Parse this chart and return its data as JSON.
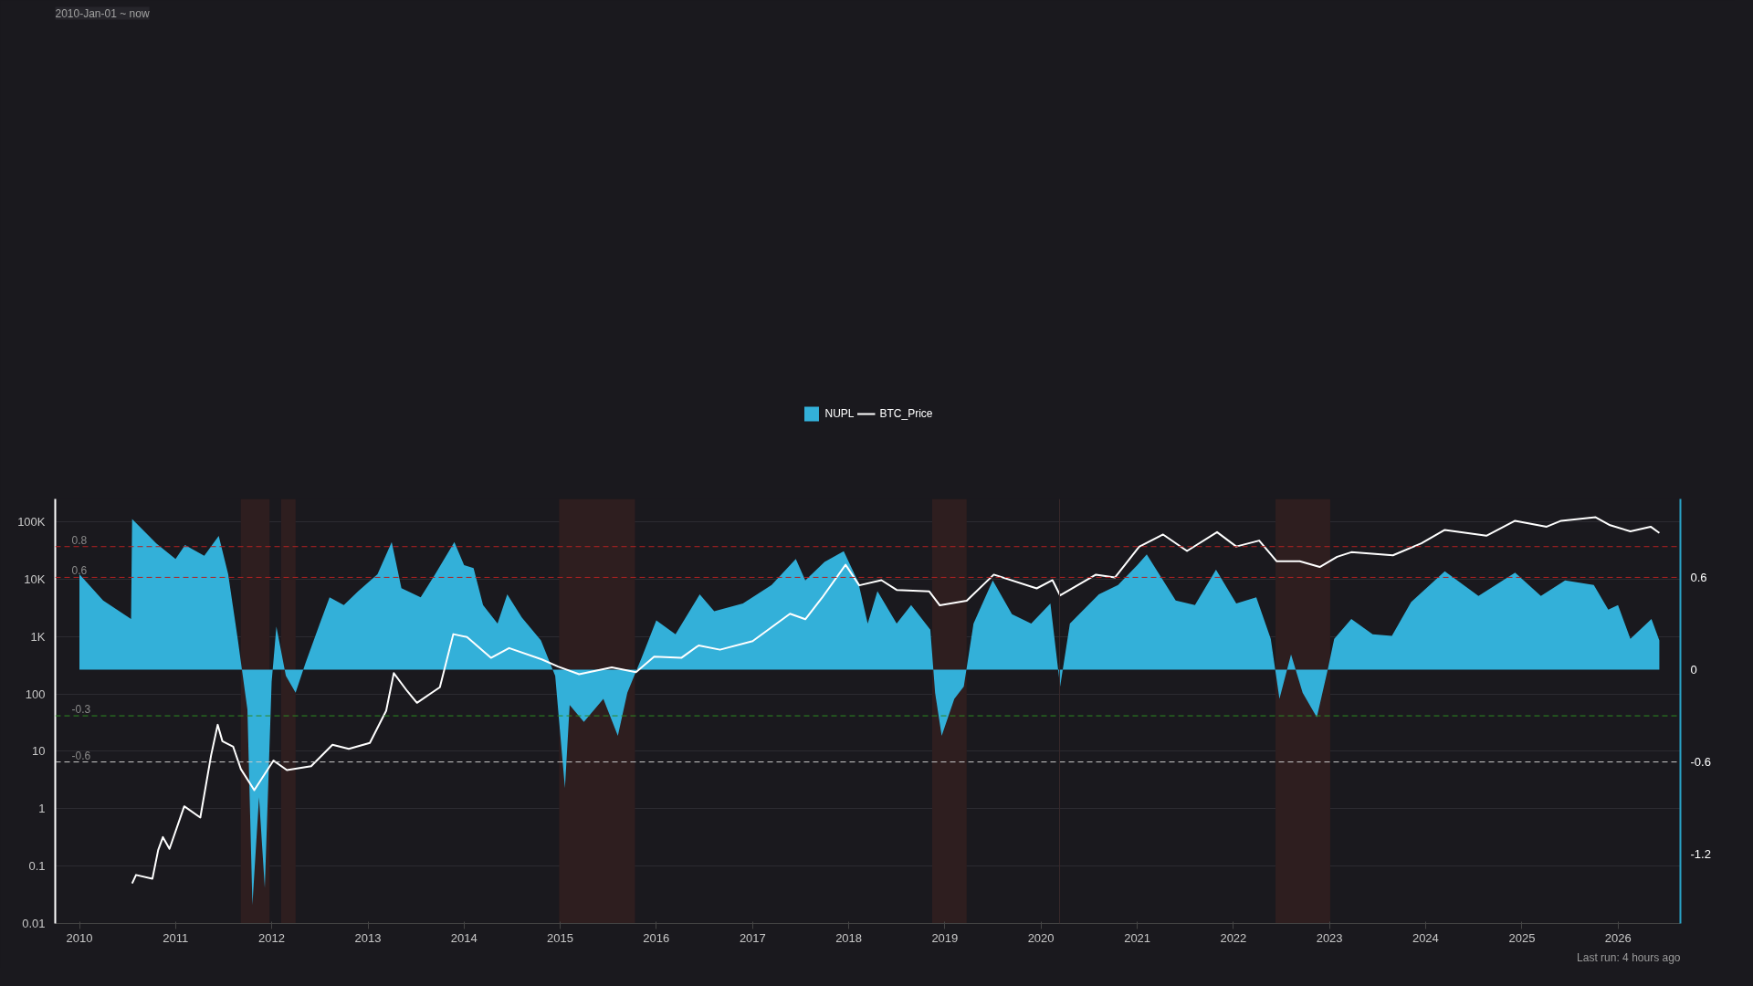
{
  "chart_data": {
    "type": "area",
    "annotations": [
      "2010-Jan-01 ~ now",
      "Last run: 4 hours ago"
    ],
    "xlim": [
      "2009-10-01",
      "2026-08-26"
    ],
    "xticks": [
      "2010",
      "2011",
      "2012",
      "2013",
      "2014",
      "2015",
      "2016",
      "2017",
      "2018",
      "2019",
      "2020",
      "2021",
      "2022",
      "2023",
      "2024",
      "2025",
      "2026"
    ],
    "log": "y",
    "ylim": [
      0.01,
      250000
    ],
    "yticks": [
      0.01,
      0.1,
      1,
      10,
      100,
      {
        "value": 1000,
        "label": "1K"
      },
      {
        "value": 10000,
        "label": "10K"
      },
      {
        "value": 100000,
        "label": "100K"
      }
    ],
    "y2lim": [
      -1.65,
      1.11
    ],
    "y2ticks": [
      -1.2,
      -0.6,
      0,
      0.6
    ],
    "grid": "y",
    "legend": "top",
    "ref_lines": [
      {
        "axis": "y2",
        "value": 0.8,
        "label": "0.8",
        "color": "#b22222",
        "line_style": "dashed"
      },
      {
        "axis": "y2",
        "value": 0.6,
        "label": "0.6",
        "color": "#b22222",
        "line_style": "dashed"
      },
      {
        "axis": "y2",
        "value": -0.3,
        "label": "-0.3",
        "color": "#2e8b22",
        "line_style": "dashed"
      },
      {
        "axis": "y2",
        "value": -0.6,
        "label": "-0.6",
        "color": "#cccccc",
        "line_style": "dashed"
      },
      {
        "axis": "x",
        "value": "2020-03-12",
        "color": "#3a2a2c",
        "line_style": "solid"
      }
    ],
    "bands": [
      {
        "axis": "x",
        "from": "2011-09-06",
        "to": "2011-12-24",
        "color": "#2e1e1f"
      },
      {
        "axis": "x",
        "from": "2012-02-06",
        "to": "2012-04-01",
        "color": "#2e1e1f"
      },
      {
        "axis": "x",
        "from": "2014-12-28",
        "to": "2015-10-12",
        "color": "#2e1e1f"
      },
      {
        "axis": "x",
        "from": "2018-11-14",
        "to": "2019-03-25",
        "color": "#2e1e1f"
      },
      {
        "axis": "x",
        "from": "2022-06-10",
        "to": "2023-01-04",
        "color": "#2e1e1f"
      }
    ],
    "series": [
      {
        "name": "NUPL",
        "axis": "y2",
        "color": "#33b0d9",
        "x": [
          "2010-01-01",
          "2010-04-01",
          "2010-07-16",
          "2010-07-20",
          "2010-10-20",
          "2011-01-01",
          "2011-02-06",
          "2011-04-20",
          "2011-06-14",
          "2011-07-20",
          "2011-08-26",
          "2011-10-01",
          "2011-10-20",
          "2011-11-14",
          "2011-12-06",
          "2012-01-01",
          "2012-01-19",
          "2012-02-24",
          "2012-04-01",
          "2012-05-08",
          "2012-07-02",
          "2012-08-08",
          "2012-10-01",
          "2012-11-25",
          "2013-02-06",
          "2013-04-01",
          "2013-05-08",
          "2013-07-20",
          "2013-09-13",
          "2013-11-25",
          "2014-01-01",
          "2014-02-06",
          "2014-03-14",
          "2014-05-08",
          "2014-06-14",
          "2014-08-08",
          "2014-10-20",
          "2014-12-13",
          "2015-01-19",
          "2015-02-06",
          "2015-04-01",
          "2015-06-14",
          "2015-08-08",
          "2015-09-13",
          "2015-11-07",
          "2016-01-01",
          "2016-03-14",
          "2016-06-14",
          "2016-08-08",
          "2016-11-25",
          "2017-03-14",
          "2017-06-14",
          "2017-07-20",
          "2017-10-01",
          "2017-12-13",
          "2018-02-06",
          "2018-03-14",
          "2018-04-20",
          "2018-07-02",
          "2018-08-26",
          "2018-11-07",
          "2018-11-25",
          "2018-12-20",
          "2019-02-06",
          "2019-03-14",
          "2019-04-20",
          "2019-07-02",
          "2019-09-13",
          "2019-11-25",
          "2020-02-06",
          "2020-03-14",
          "2020-04-20",
          "2020-08-08",
          "2020-10-20",
          "2021-01-01",
          "2021-02-06",
          "2021-05-27",
          "2021-08-08",
          "2021-10-27",
          "2022-01-12",
          "2022-03-29",
          "2022-05-23",
          "2022-06-25",
          "2022-08-08",
          "2022-09-21",
          "2022-11-14",
          "2022-12-24",
          "2023-01-19",
          "2023-03-25",
          "2023-06-14",
          "2023-08-26",
          "2023-11-07",
          "2024-03-14",
          "2024-07-20",
          "2024-12-06",
          "2025-03-14",
          "2025-06-14",
          "2025-10-01",
          "2025-11-25",
          "2026-01-01",
          "2026-02-17",
          "2026-05-08",
          "2026-06-07"
        ],
        "values": [
          0.62,
          0.45,
          0.33,
          0.98,
          0.82,
          0.72,
          0.81,
          0.74,
          0.87,
          0.62,
          0.19,
          -0.26,
          -1.53,
          -0.83,
          -1.42,
          -0.08,
          0.28,
          -0.04,
          -0.15,
          0.04,
          0.3,
          0.47,
          0.42,
          0.51,
          0.62,
          0.83,
          0.53,
          0.47,
          0.62,
          0.83,
          0.68,
          0.66,
          0.42,
          0.3,
          0.49,
          0.34,
          0.19,
          -0.04,
          -0.77,
          -0.23,
          -0.34,
          -0.19,
          -0.43,
          -0.15,
          0.08,
          0.32,
          0.23,
          0.49,
          0.38,
          0.43,
          0.55,
          0.72,
          0.58,
          0.7,
          0.77,
          0.57,
          0.3,
          0.51,
          0.3,
          0.42,
          0.26,
          -0.15,
          -0.43,
          -0.19,
          -0.11,
          0.3,
          0.58,
          0.36,
          0.3,
          0.43,
          -0.11,
          0.3,
          0.49,
          0.55,
          0.68,
          0.75,
          0.45,
          0.42,
          0.65,
          0.43,
          0.47,
          0.2,
          -0.19,
          0.1,
          -0.15,
          -0.31,
          -0.01,
          0.2,
          0.33,
          0.23,
          0.22,
          0.44,
          0.64,
          0.48,
          0.63,
          0.48,
          0.58,
          0.55,
          0.39,
          0.42,
          0.2,
          0.33,
          0.19
        ]
      },
      {
        "name": "BTC_Price",
        "type": "line",
        "color": "#ffffff",
        "x": [
          "2010-07-20",
          "2010-08-04",
          "2010-10-05",
          "2010-10-27",
          "2010-11-14",
          "2010-12-09",
          "2011-02-03",
          "2011-04-05",
          "2011-05-16",
          "2011-06-10",
          "2011-06-28",
          "2011-08-08",
          "2011-09-06",
          "2011-10-27",
          "2012-01-08",
          "2012-02-28",
          "2012-05-30",
          "2012-08-19",
          "2012-10-20",
          "2013-01-08",
          "2013-03-11",
          "2013-04-09",
          "2013-05-30",
          "2013-07-06",
          "2013-10-01",
          "2013-11-21",
          "2014-01-12",
          "2014-04-13",
          "2014-06-21",
          "2014-10-23",
          "2014-12-24",
          "2015-03-14",
          "2015-07-16",
          "2015-10-16",
          "2015-12-24",
          "2016-04-05",
          "2016-06-10",
          "2016-08-30",
          "2017-01-01",
          "2017-05-23",
          "2017-07-20",
          "2017-09-21",
          "2017-12-20",
          "2018-02-10",
          "2018-05-05",
          "2018-07-02",
          "2018-11-03",
          "2018-12-13",
          "2019-03-25",
          "2019-07-06",
          "2019-12-16",
          "2020-02-14",
          "2020-03-14",
          "2020-07-28",
          "2020-10-08",
          "2021-01-08",
          "2021-04-09",
          "2021-07-09",
          "2021-10-31",
          "2022-01-12",
          "2022-04-09",
          "2022-06-14",
          "2022-09-10",
          "2022-11-25",
          "2023-01-30",
          "2023-03-25",
          "2023-08-30",
          "2023-12-16",
          "2024-03-14",
          "2024-08-19",
          "2024-12-06",
          "2025-04-05",
          "2025-05-30",
          "2025-10-08",
          "2025-12-02",
          "2026-02-17",
          "2026-05-05",
          "2026-06-07"
        ],
        "values": [
          0.05,
          0.07,
          0.06,
          0.19,
          0.32,
          0.2,
          1.1,
          0.7,
          8.5,
          29,
          15,
          12,
          4.9,
          2.1,
          6.9,
          4.7,
          5.5,
          13,
          11,
          14,
          51,
          230,
          112,
          70,
          131,
          1100,
          980,
          425,
          630,
          400,
          300,
          220,
          290,
          240,
          445,
          425,
          700,
          590,
          830,
          2500,
          2000,
          4700,
          17800,
          7800,
          9600,
          6500,
          6100,
          3500,
          4200,
          12000,
          6900,
          9600,
          5200,
          12000,
          10700,
          36700,
          60000,
          31000,
          66000,
          37000,
          47000,
          20600,
          20500,
          16300,
          24500,
          29500,
          26000,
          42000,
          72000,
          57000,
          104000,
          82000,
          104000,
          120000,
          87000,
          68000,
          82000,
          64000
        ]
      }
    ]
  }
}
